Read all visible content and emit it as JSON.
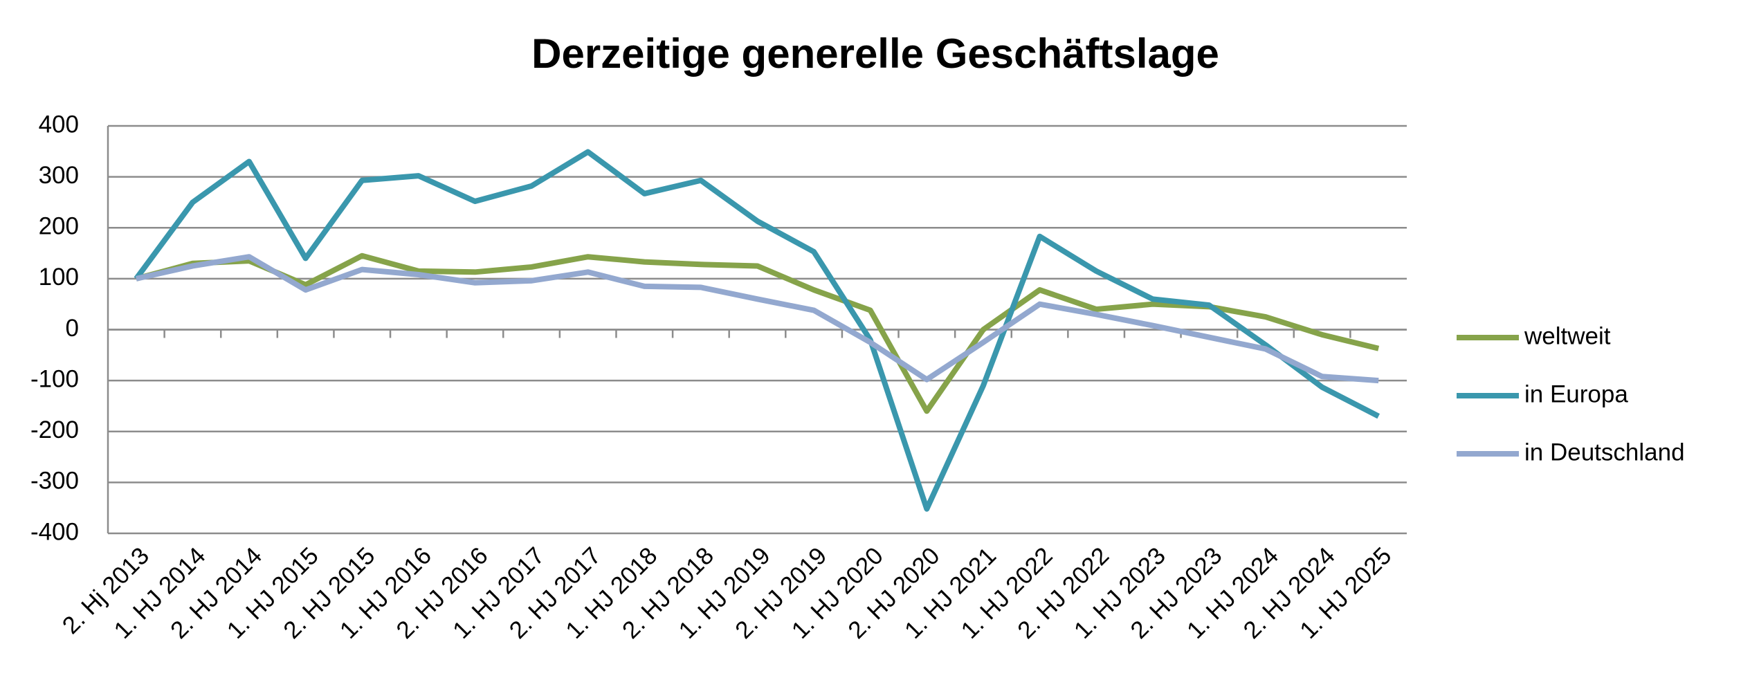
{
  "chart_data": {
    "type": "line",
    "title": "Derzeitige generelle Geschäftslage",
    "categories": [
      "2. Hj 2013",
      "1. HJ 2014",
      "2. HJ 2014",
      "1. HJ 2015",
      "2. HJ 2015",
      "1. HJ 2016",
      "2. HJ 2016",
      "1. HJ 2017",
      "2. HJ 2017",
      "1. HJ 2018",
      "2. HJ 2018",
      "1. HJ 2019",
      "2. HJ 2019",
      "1. HJ 2020",
      "2. HJ 2020",
      "1. HJ 2021",
      "1. HJ 2022",
      "2. HJ 2022",
      "1. HJ 2023",
      "2. HJ 2023",
      "1. HJ 2024",
      "2. HJ 2024",
      "1. HJ 2025"
    ],
    "series": [
      {
        "name": "weltweit",
        "color": "#86a34a",
        "values": [
          100,
          130,
          135,
          88,
          145,
          115,
          113,
          123,
          143,
          133,
          128,
          125,
          78,
          38,
          -160,
          0,
          78,
          40,
          50,
          45,
          25,
          -10,
          -37
        ]
      },
      {
        "name": "in Europa",
        "color": "#3a97ad",
        "values": [
          100,
          250,
          330,
          140,
          293,
          302,
          252,
          282,
          349,
          267,
          293,
          213,
          153,
          -20,
          -352,
          -110,
          183,
          115,
          60,
          48,
          -30,
          -113,
          -170
        ]
      },
      {
        "name": "in Deutschland",
        "color": "#93a8cf",
        "values": [
          100,
          125,
          143,
          78,
          118,
          108,
          92,
          96,
          113,
          85,
          83,
          60,
          38,
          -25,
          -98,
          -25,
          50,
          30,
          8,
          -15,
          -38,
          -92,
          -100
        ]
      }
    ],
    "ylim": [
      -400,
      400
    ],
    "yticks": [
      -400,
      -300,
      -200,
      -100,
      0,
      100,
      200,
      300,
      400
    ],
    "grid": true,
    "legend": "right"
  }
}
